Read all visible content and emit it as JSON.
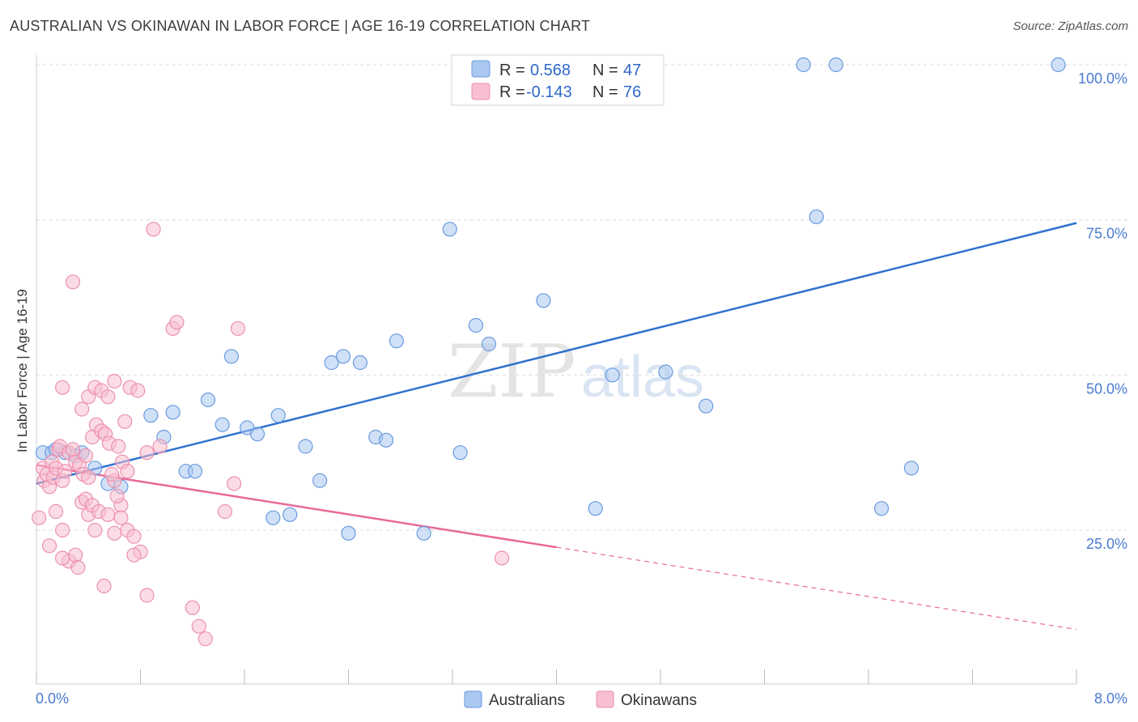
{
  "title": "AUSTRALIAN VS OKINAWAN IN LABOR FORCE | AGE 16-19 CORRELATION CHART",
  "source": "Source: ZipAtlas.com",
  "watermark": {
    "zip": "ZIP",
    "atlas": "atlas"
  },
  "colors": {
    "blue_fill": "#aac8f0",
    "blue_stroke": "#6a9ae0",
    "blue_line": "#2f72d0",
    "pink_fill": "#f7bfd0",
    "pink_stroke": "#ec90ae",
    "pink_line": "#e8699a",
    "grid": "#dcdcdc",
    "tick_text": "#4a7bd0"
  },
  "legend": {
    "rows": [
      {
        "r_label": "R =",
        "r_value": "0.568",
        "n_label": "N =",
        "n_value": "47"
      },
      {
        "r_label": "R =",
        "r_value": "-0.143",
        "n_label": "N =",
        "n_value": "76"
      }
    ]
  },
  "bottom_legend": [
    "Australians",
    "Okinawans"
  ],
  "chart_data": {
    "type": "scatter",
    "title": "AUSTRALIAN VS OKINAWAN IN LABOR FORCE | AGE 16-19 CORRELATION CHART",
    "xlabel": "",
    "ylabel": "In Labor Force | Age 16-19",
    "xlim": [
      0,
      8
    ],
    "ylim": [
      0,
      100
    ],
    "x_tick_labels": [
      "0.0%",
      "8.0%"
    ],
    "y_ticks": [
      25,
      50,
      75,
      100
    ],
    "y_tick_labels": [
      "25.0%",
      "50.0%",
      "75.0%",
      "100.0%"
    ],
    "series": [
      {
        "name": "Australians",
        "R": 0.568,
        "N": 47,
        "trend": {
          "x0": 0.0,
          "y0": 32.5,
          "x1": 8.0,
          "y1": 74.5,
          "dashed_from": null
        },
        "points": [
          [
            0.05,
            37.5
          ],
          [
            0.12,
            37.5
          ],
          [
            0.15,
            38.0
          ],
          [
            0.22,
            37.5
          ],
          [
            0.3,
            37.0
          ],
          [
            0.35,
            37.5
          ],
          [
            0.45,
            35.0
          ],
          [
            0.55,
            32.5
          ],
          [
            0.65,
            32.0
          ],
          [
            0.88,
            43.5
          ],
          [
            0.98,
            40.0
          ],
          [
            1.05,
            44.0
          ],
          [
            1.15,
            34.5
          ],
          [
            1.22,
            34.5
          ],
          [
            1.32,
            46.0
          ],
          [
            1.43,
            42.0
          ],
          [
            1.5,
            53.0
          ],
          [
            1.62,
            41.5
          ],
          [
            1.7,
            40.5
          ],
          [
            1.82,
            27.0
          ],
          [
            1.86,
            43.5
          ],
          [
            1.95,
            27.5
          ],
          [
            2.07,
            38.5
          ],
          [
            2.18,
            33.0
          ],
          [
            2.27,
            52.0
          ],
          [
            2.36,
            53.0
          ],
          [
            2.4,
            24.5
          ],
          [
            2.49,
            52.0
          ],
          [
            2.61,
            40.0
          ],
          [
            2.69,
            39.5
          ],
          [
            2.77,
            55.5
          ],
          [
            2.98,
            24.5
          ],
          [
            3.18,
            73.5
          ],
          [
            3.26,
            37.5
          ],
          [
            3.38,
            58.0
          ],
          [
            3.48,
            55.0
          ],
          [
            3.9,
            62.0
          ],
          [
            4.3,
            28.5
          ],
          [
            4.43,
            50.0
          ],
          [
            4.84,
            50.5
          ],
          [
            5.15,
            45.0
          ],
          [
            5.9,
            100.0
          ],
          [
            6.0,
            75.5
          ],
          [
            6.15,
            100.0
          ],
          [
            6.5,
            28.5
          ],
          [
            6.73,
            35.0
          ],
          [
            7.86,
            100.0
          ]
        ]
      },
      {
        "name": "Okinawans",
        "R": -0.143,
        "N": 76,
        "trend": {
          "x0": 0.0,
          "y0": 35.5,
          "x1": 8.0,
          "y1": 9.0,
          "dashed_from": 4.0
        },
        "points": [
          [
            0.02,
            27.0
          ],
          [
            0.05,
            35.0
          ],
          [
            0.06,
            33.0
          ],
          [
            0.08,
            34.0
          ],
          [
            0.1,
            32.0
          ],
          [
            0.12,
            36.0
          ],
          [
            0.13,
            33.5
          ],
          [
            0.15,
            35.0
          ],
          [
            0.17,
            38.0
          ],
          [
            0.18,
            38.5
          ],
          [
            0.2,
            33.0
          ],
          [
            0.22,
            34.5
          ],
          [
            0.25,
            37.5
          ],
          [
            0.28,
            38.0
          ],
          [
            0.3,
            36.0
          ],
          [
            0.33,
            35.5
          ],
          [
            0.36,
            34.0
          ],
          [
            0.38,
            37.0
          ],
          [
            0.4,
            33.5
          ],
          [
            0.43,
            40.0
          ],
          [
            0.46,
            42.0
          ],
          [
            0.5,
            41.0
          ],
          [
            0.53,
            40.5
          ],
          [
            0.56,
            39.0
          ],
          [
            0.6,
            33.0
          ],
          [
            0.63,
            38.5
          ],
          [
            0.66,
            36.0
          ],
          [
            0.7,
            34.5
          ],
          [
            0.15,
            28.0
          ],
          [
            0.2,
            25.0
          ],
          [
            0.25,
            20.0
          ],
          [
            0.3,
            21.0
          ],
          [
            0.35,
            29.5
          ],
          [
            0.38,
            30.0
          ],
          [
            0.4,
            27.5
          ],
          [
            0.43,
            29.0
          ],
          [
            0.45,
            25.0
          ],
          [
            0.48,
            28.0
          ],
          [
            0.52,
            16.0
          ],
          [
            0.55,
            27.5
          ],
          [
            0.6,
            24.5
          ],
          [
            0.65,
            29.0
          ],
          [
            0.7,
            25.0
          ],
          [
            0.75,
            24.0
          ],
          [
            0.8,
            21.5
          ],
          [
            0.85,
            14.5
          ],
          [
            0.2,
            48.0
          ],
          [
            0.28,
            65.0
          ],
          [
            0.35,
            44.5
          ],
          [
            0.4,
            46.5
          ],
          [
            0.45,
            48.0
          ],
          [
            0.5,
            47.5
          ],
          [
            0.55,
            46.5
          ],
          [
            0.6,
            49.0
          ],
          [
            0.68,
            42.5
          ],
          [
            0.72,
            48.0
          ],
          [
            0.78,
            47.5
          ],
          [
            0.85,
            37.5
          ],
          [
            0.9,
            73.5
          ],
          [
            1.05,
            57.5
          ],
          [
            1.08,
            58.5
          ],
          [
            1.2,
            12.5
          ],
          [
            1.25,
            9.5
          ],
          [
            1.3,
            7.5
          ],
          [
            1.45,
            28.0
          ],
          [
            1.52,
            32.5
          ],
          [
            1.55,
            57.5
          ],
          [
            3.58,
            20.5
          ],
          [
            0.1,
            22.5
          ],
          [
            0.2,
            20.5
          ],
          [
            0.32,
            19.0
          ],
          [
            0.58,
            34.0
          ],
          [
            0.62,
            30.5
          ],
          [
            0.65,
            27.0
          ],
          [
            0.75,
            21.0
          ],
          [
            0.95,
            38.5
          ]
        ]
      }
    ]
  }
}
